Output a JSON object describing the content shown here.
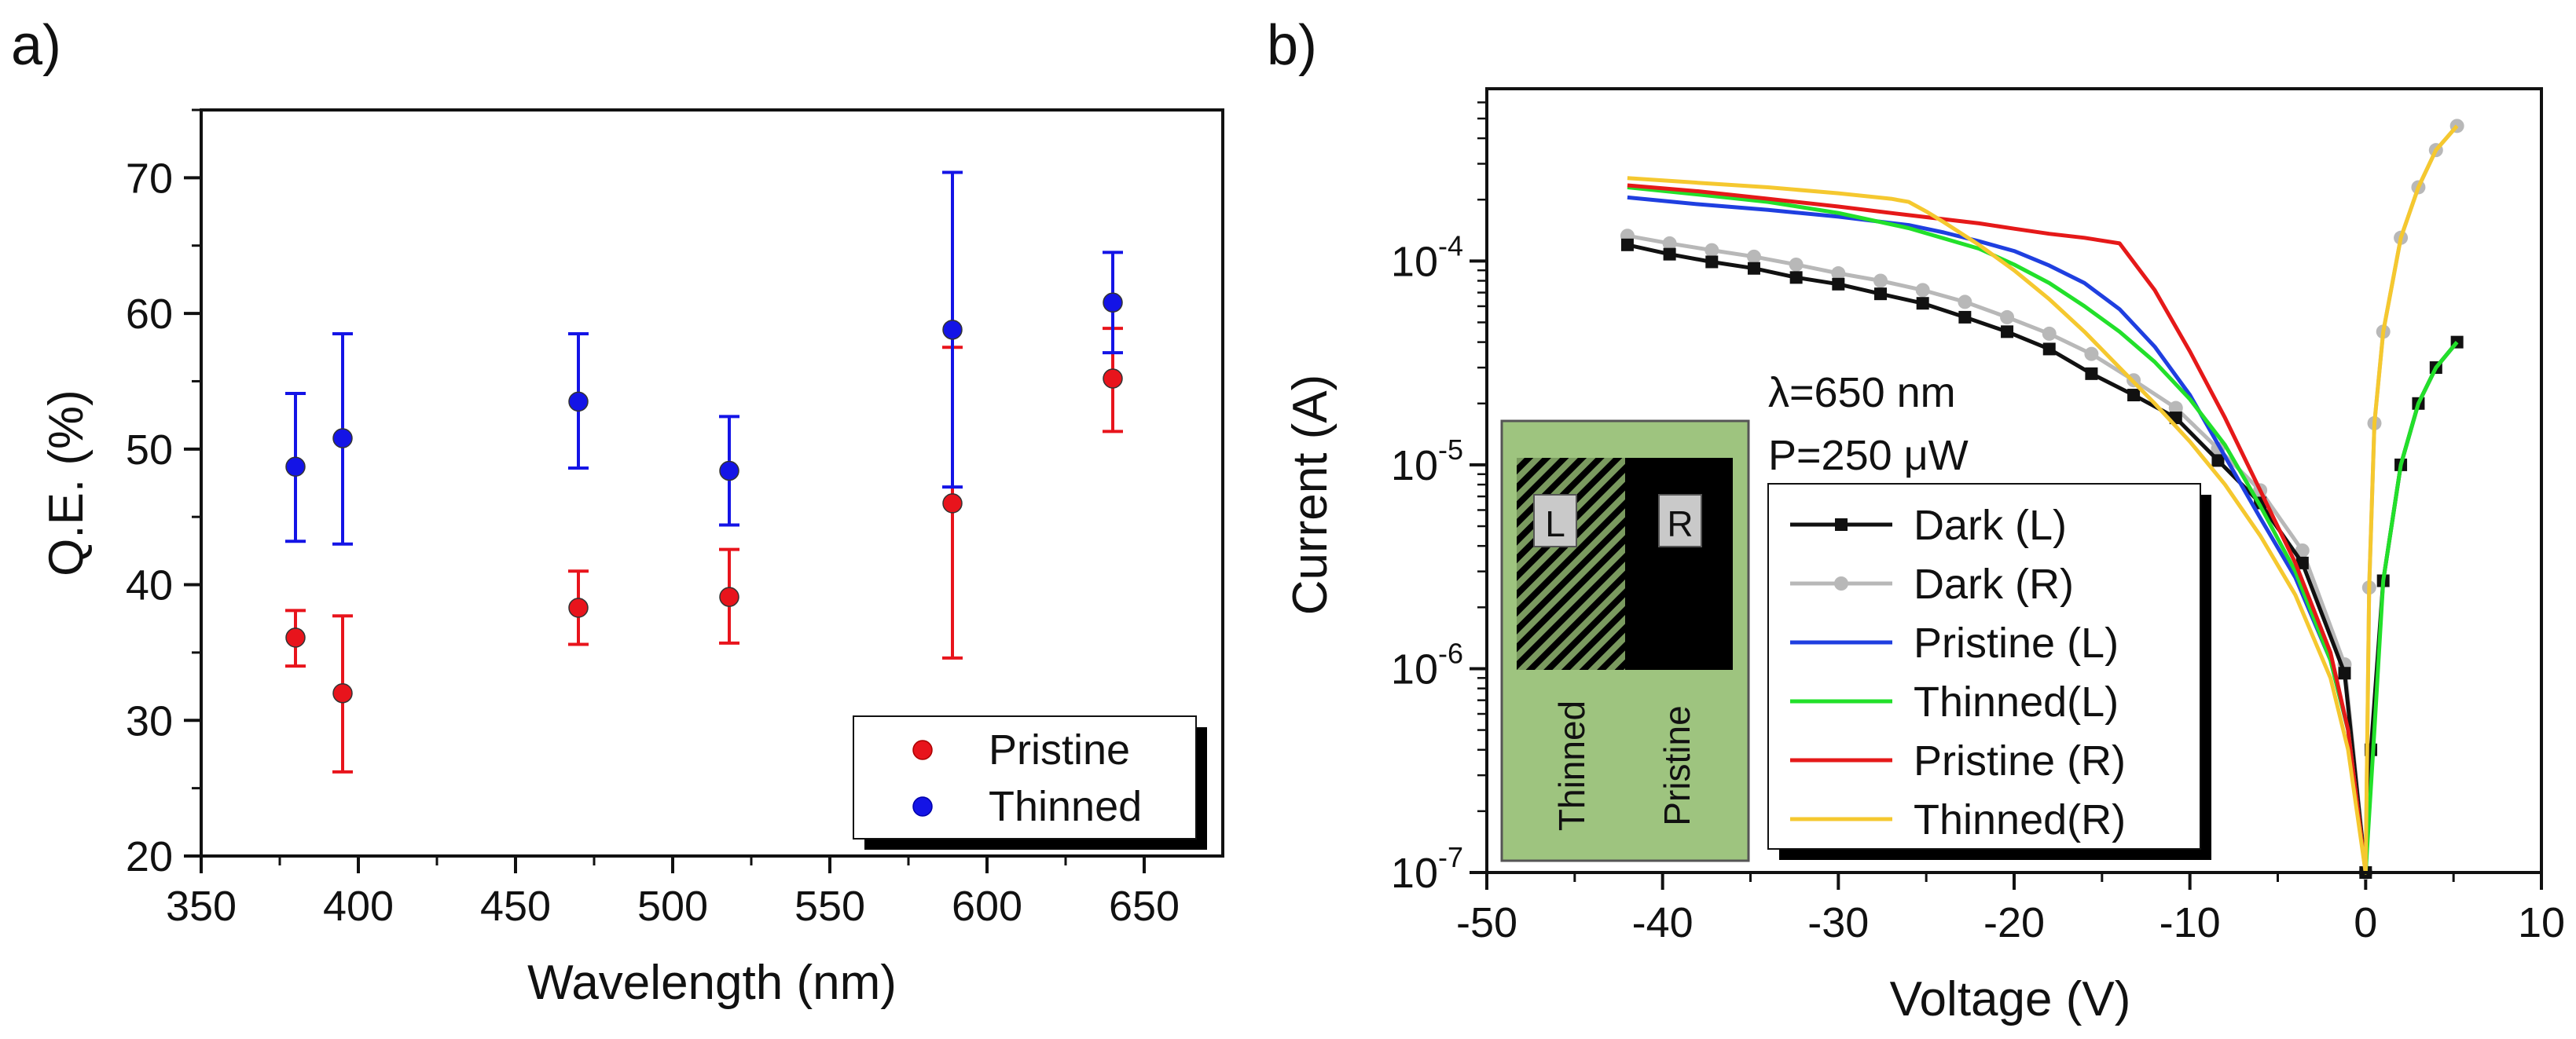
{
  "chart_data": [
    {
      "panel_label": "a)",
      "type": "scatter",
      "title": "",
      "xlabel": "Wavelength (nm)",
      "ylabel": "Q.E. (%)",
      "xlim": [
        350,
        675
      ],
      "ylim": [
        20,
        75
      ],
      "xticks": [
        "350",
        "400",
        "450",
        "500",
        "550",
        "600",
        "650"
      ],
      "yticks": [
        "20",
        "30",
        "40",
        "50",
        "60",
        "70"
      ],
      "grid": false,
      "legend_position": "bottom-right",
      "series": [
        {
          "name": "Pristine",
          "color": "#e8141c",
          "points": [
            {
              "x": 380,
              "y": 36.1,
              "err_low": 34.0,
              "err_high": 38.1
            },
            {
              "x": 395,
              "y": 32.0,
              "err_low": 26.2,
              "err_high": 37.7
            },
            {
              "x": 470,
              "y": 38.3,
              "err_low": 35.6,
              "err_high": 41.0
            },
            {
              "x": 518,
              "y": 39.1,
              "err_low": 35.7,
              "err_high": 42.6
            },
            {
              "x": 589,
              "y": 46.0,
              "err_low": 34.6,
              "err_high": 57.5
            },
            {
              "x": 640,
              "y": 55.2,
              "err_low": 51.3,
              "err_high": 58.9
            }
          ]
        },
        {
          "name": "Thinned",
          "color": "#1414e6",
          "points": [
            {
              "x": 380,
              "y": 48.7,
              "err_low": 43.2,
              "err_high": 54.1
            },
            {
              "x": 395,
              "y": 50.8,
              "err_low": 43.0,
              "err_high": 58.5
            },
            {
              "x": 470,
              "y": 53.5,
              "err_low": 48.6,
              "err_high": 58.5
            },
            {
              "x": 518,
              "y": 48.4,
              "err_low": 44.4,
              "err_high": 52.4
            },
            {
              "x": 589,
              "y": 58.8,
              "err_low": 47.2,
              "err_high": 70.4
            },
            {
              "x": 640,
              "y": 60.8,
              "err_low": 57.1,
              "err_high": 64.5
            }
          ]
        }
      ]
    },
    {
      "panel_label": "b)",
      "type": "line",
      "title": "",
      "xlabel": "Voltage (V)",
      "ylabel": "Current (A)",
      "xlim": [
        -50,
        10
      ],
      "ylim": [
        1e-07,
        0.0007
      ],
      "yscale": "log",
      "xticks": [
        "-50",
        "-40",
        "-30",
        "-20",
        "-10",
        "0",
        "10"
      ],
      "yticks": [
        {
          "base": "10",
          "exp": "-7",
          "value": 1e-07
        },
        {
          "base": "10",
          "exp": "-6",
          "value": 1e-06
        },
        {
          "base": "10",
          "exp": "-5",
          "value": 1e-05
        },
        {
          "base": "10",
          "exp": "-4",
          "value": 0.0001
        }
      ],
      "grid": false,
      "legend_position": "bottom-center",
      "annotations": [
        "λ=650 nm",
        "P=250 μW"
      ],
      "inset": {
        "regions": [
          "Thinned",
          "Pristine"
        ],
        "contacts": [
          "L",
          "R"
        ],
        "background": "#9ec47f"
      },
      "series": [
        {
          "name": "Dark (L)",
          "color": "#111111",
          "marker": "square",
          "x": [
            -42,
            -39.6,
            -37.2,
            -34.8,
            -32.4,
            -30,
            -27.6,
            -25.2,
            -22.8,
            -20.4,
            -18,
            -15.6,
            -13.2,
            -10.8,
            -8.4,
            -6,
            -3.6,
            -1.2,
            0,
            0.3,
            1,
            2,
            3,
            4,
            5.2
          ],
          "y": [
            0.00012,
            0.000108,
            9.9e-05,
            9.2e-05,
            8.3e-05,
            7.7e-05,
            6.9e-05,
            6.2e-05,
            5.3e-05,
            4.5e-05,
            3.7e-05,
            2.8e-05,
            2.2e-05,
            1.7e-05,
            1.05e-05,
            6.5e-06,
            3.3e-06,
            9.5e-07,
            1e-07,
            4e-07,
            2.7e-06,
            1e-05,
            2e-05,
            3e-05,
            4e-05
          ]
        },
        {
          "name": "Dark (R)",
          "color": "#b8b8b8",
          "marker": "circle",
          "x": [
            -42,
            -39.6,
            -37.2,
            -34.8,
            -32.4,
            -30,
            -27.6,
            -25.2,
            -22.8,
            -20.4,
            -18,
            -15.6,
            -13.2,
            -10.8,
            -8.4,
            -6,
            -3.6,
            -1.2,
            0,
            0.2,
            0.5,
            1,
            2,
            3,
            4,
            5.2
          ],
          "y": [
            0.000133,
            0.000122,
            0.000113,
            0.000105,
            9.6e-05,
            8.7e-05,
            8e-05,
            7.2e-05,
            6.3e-05,
            5.3e-05,
            4.4e-05,
            3.5e-05,
            2.6e-05,
            1.9e-05,
            1.2e-05,
            7.5e-06,
            3.8e-06,
            1.05e-06,
            1e-07,
            2.5e-06,
            1.6e-05,
            4.5e-05,
            0.00013,
            0.00023,
            0.00035,
            0.00046
          ]
        },
        {
          "name": "Pristine (L)",
          "color": "#1f3fe0",
          "marker": "none",
          "x": [
            -42,
            -38,
            -34,
            -30,
            -26,
            -24,
            -22,
            -20,
            -18,
            -16,
            -14,
            -12,
            -10,
            -8,
            -6,
            -4,
            -2,
            -1,
            0
          ],
          "y": [
            0.000205,
            0.00019,
            0.000178,
            0.000165,
            0.00015,
            0.000138,
            0.000125,
            0.000112,
            9.5e-05,
            7.8e-05,
            5.8e-05,
            3.8e-05,
            2.2e-05,
            1.1e-05,
            5.5e-06,
            2.8e-06,
            1.1e-06,
            5e-07,
            1e-07
          ]
        },
        {
          "name": "Thinned(L)",
          "color": "#22e02a",
          "marker": "none",
          "x": [
            -42,
            -38,
            -34,
            -30,
            -26,
            -22,
            -20,
            -18,
            -16,
            -14,
            -12,
            -10,
            -8,
            -6,
            -4,
            -2,
            -1,
            0,
            0.5,
            1,
            2,
            3,
            4,
            5.2
          ],
          "y": [
            0.00023,
            0.000212,
            0.000195,
            0.000172,
            0.000145,
            0.000115,
            9.6e-05,
            7.8e-05,
            6e-05,
            4.5e-05,
            3.2e-05,
            2.1e-05,
            1.25e-05,
            6.3e-06,
            3e-06,
            1.1e-06,
            5e-07,
            1e-07,
            5e-07,
            2.7e-06,
            1e-05,
            2e-05,
            3e-05,
            4e-05
          ]
        },
        {
          "name": "Pristine (R)",
          "color": "#e51919",
          "marker": "none",
          "x": [
            -42,
            -38,
            -34,
            -30,
            -26,
            -22,
            -20,
            -18,
            -16,
            -14,
            -12,
            -10,
            -8,
            -6,
            -4,
            -2,
            -1,
            0
          ],
          "y": [
            0.000235,
            0.00022,
            0.000202,
            0.000185,
            0.000168,
            0.000153,
            0.000144,
            0.000136,
            0.00013,
            0.000122,
            7.2e-05,
            3.6e-05,
            1.7e-05,
            7.5e-06,
            3.3e-06,
            1.2e-06,
            5e-07,
            1e-07
          ]
        },
        {
          "name": "Thinned(R)",
          "color": "#f5c82f",
          "marker": "none",
          "x": [
            -42,
            -38,
            -34,
            -30,
            -27,
            -26,
            -25,
            -24,
            -22,
            -20,
            -18,
            -16,
            -14,
            -12,
            -10,
            -8,
            -6,
            -4,
            -2,
            -1,
            0,
            0.2,
            0.5,
            1,
            2,
            3,
            4,
            5.2
          ],
          "y": [
            0.000255,
            0.000242,
            0.00023,
            0.000215,
            0.000202,
            0.000195,
            0.000175,
            0.000155,
            0.00012,
            9e-05,
            6.5e-05,
            4.5e-05,
            3e-05,
            2e-05,
            1.3e-05,
            8e-06,
            4.5e-06,
            2.3e-06,
            9e-07,
            4e-07,
            1e-07,
            2.5e-06,
            1.6e-05,
            4.5e-05,
            0.00013,
            0.00023,
            0.00035,
            0.00046
          ]
        }
      ]
    }
  ]
}
